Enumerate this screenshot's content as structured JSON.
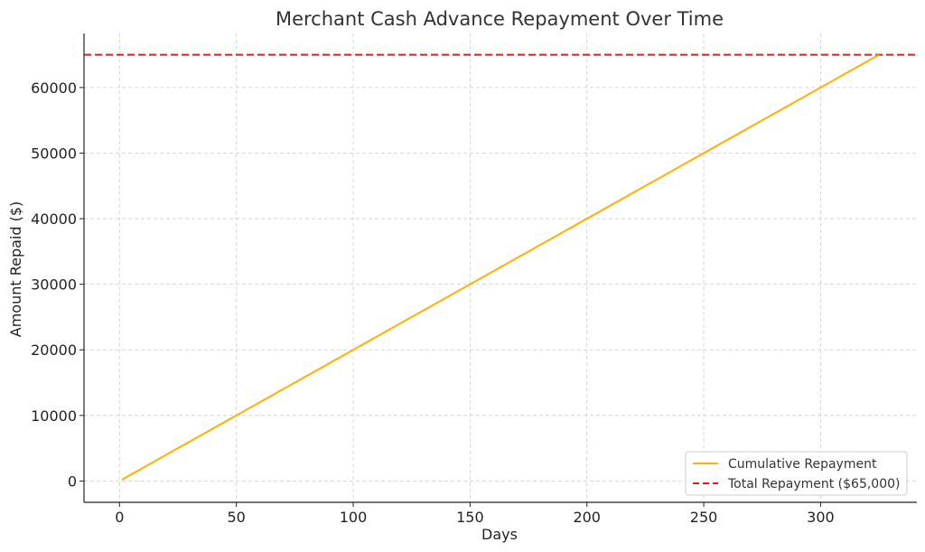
{
  "chart_data": {
    "type": "line",
    "title": "Merchant Cash Advance Repayment Over Time",
    "xlabel": "Days",
    "ylabel": "Amount Repaid ($)",
    "xlim": [
      -15.2,
      341.2
    ],
    "ylim": [
      -3250,
      68250
    ],
    "xticks": [
      0,
      50,
      100,
      150,
      200,
      250,
      300
    ],
    "yticks": [
      0,
      10000,
      20000,
      30000,
      40000,
      50000,
      60000
    ],
    "grid": true,
    "legend_position": "lower-right",
    "series": [
      {
        "name": "Cumulative Repayment",
        "style": "solid",
        "color": "#FFB000",
        "x": [
          1,
          325
        ],
        "y": [
          200,
          65000
        ]
      }
    ],
    "hlines": [
      {
        "name": "Total Repayment ($65,000)",
        "style": "dashed",
        "color": "#E41A1C",
        "y": 65000
      }
    ]
  }
}
